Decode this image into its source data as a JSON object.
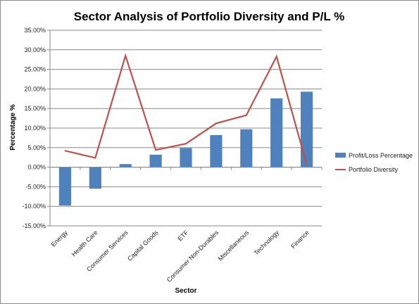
{
  "chart_data": {
    "type": "bar",
    "title": "Sector Analysis of Portfolio Diversity and P/L %",
    "xlabel": "Sector",
    "ylabel": "Percentage %",
    "categories": [
      "Energy",
      "Health Care",
      "Consumer Services",
      "Capital Goods",
      "ETF",
      "Consumer Non-Durables",
      "Miscellaneous",
      "Technology",
      "Finance"
    ],
    "series": [
      {
        "name": "Profit/Loss Percentage",
        "kind": "bar",
        "color": "#4f81bd",
        "values": [
          -9.8,
          -5.5,
          0.8,
          3.2,
          4.9,
          8.2,
          9.7,
          17.6,
          19.3
        ]
      },
      {
        "name": "Portfolio Diversity",
        "kind": "line",
        "color": "#c0504d",
        "values": [
          4.2,
          2.4,
          28.5,
          4.4,
          6.0,
          11.2,
          13.3,
          28.3,
          0.6
        ]
      }
    ],
    "ylim": [
      -15,
      35
    ],
    "ytick_step": 5,
    "ytick_labels": [
      "-15.00%",
      "-10.00%",
      "-5.00%",
      "0.00%",
      "5.00%",
      "10.00%",
      "15.00%",
      "20.00%",
      "25.00%",
      "30.00%",
      "35.00%"
    ],
    "grid": true,
    "legend_position": "right"
  }
}
